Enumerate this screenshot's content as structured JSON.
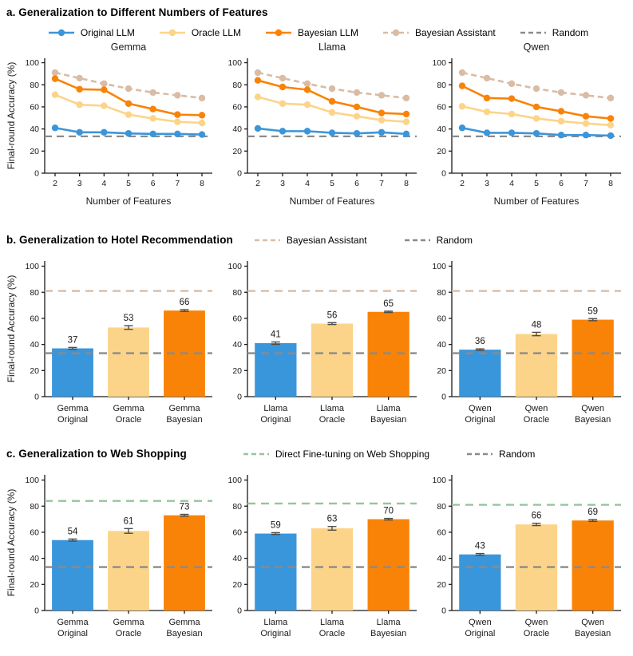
{
  "colors": {
    "blue": "#3A96DB",
    "oracle": "#FCD489",
    "bayesian": "#F98307",
    "assistant": "#D9BCA6",
    "random": "#8A8A8A",
    "green": "#95C59B",
    "error_bar": "#4D4D4D",
    "axis": "#1A1A1A"
  },
  "panel_a": {
    "title": "a. Generalization to Different Numbers of Features",
    "legend": [
      "Original LLM",
      "Oracle LLM",
      "Bayesian LLM",
      "Bayesian Assistant",
      "Random"
    ]
  },
  "panel_b": {
    "title": "b. Generalization to Hotel Recommendation",
    "legend": [
      "Bayesian Assistant",
      "Random"
    ]
  },
  "panel_c": {
    "title": "c. Generalization to Web Shopping",
    "legend": [
      "Direct Fine-tuning on Web Shopping",
      "Random"
    ]
  },
  "chart_data": [
    {
      "type": "line",
      "panel": "a",
      "title": "Gemma",
      "xlabel": "Number of Features",
      "ylabel": "Final-round Accuracy (%)",
      "ylim": [
        0,
        100
      ],
      "x": [
        2,
        3,
        4,
        5,
        6,
        7,
        8
      ],
      "series": [
        {
          "name": "Bayesian Assistant",
          "color": "assistant",
          "dashed": true,
          "values": [
            91,
            86,
            81,
            76.5,
            73,
            70.5,
            68
          ]
        },
        {
          "name": "Oracle LLM",
          "color": "oracle",
          "dashed": false,
          "values": [
            71,
            62,
            61,
            53,
            49.5,
            46.5,
            45.5
          ]
        },
        {
          "name": "Bayesian LLM",
          "color": "bayesian",
          "dashed": false,
          "values": [
            85.5,
            76,
            75.5,
            63,
            58,
            53,
            52.5
          ]
        },
        {
          "name": "Original LLM",
          "color": "blue",
          "dashed": false,
          "values": [
            41,
            37,
            37,
            36,
            35.5,
            35.5,
            35
          ]
        }
      ],
      "ref_lines": [
        {
          "name": "Random",
          "color": "random",
          "value": 33.3
        }
      ]
    },
    {
      "type": "line",
      "panel": "a",
      "title": "Llama",
      "xlabel": "Number of Features",
      "ylabel": "",
      "ylim": [
        0,
        100
      ],
      "x": [
        2,
        3,
        4,
        5,
        6,
        7,
        8
      ],
      "series": [
        {
          "name": "Bayesian Assistant",
          "color": "assistant",
          "dashed": true,
          "values": [
            91,
            86,
            81,
            76.5,
            73,
            70.5,
            68
          ]
        },
        {
          "name": "Oracle LLM",
          "color": "oracle",
          "dashed": false,
          "values": [
            69,
            63,
            62,
            55,
            51.5,
            48,
            46.5
          ]
        },
        {
          "name": "Bayesian LLM",
          "color": "bayesian",
          "dashed": false,
          "values": [
            84,
            78,
            75.5,
            65,
            60,
            54.5,
            53.5
          ]
        },
        {
          "name": "Original LLM",
          "color": "blue",
          "dashed": false,
          "values": [
            40.5,
            38,
            38,
            36.5,
            36,
            37,
            35.5
          ]
        }
      ],
      "ref_lines": [
        {
          "name": "Random",
          "color": "random",
          "value": 33.3
        }
      ]
    },
    {
      "type": "line",
      "panel": "a",
      "title": "Qwen",
      "xlabel": "Number of Features",
      "ylabel": "",
      "ylim": [
        0,
        100
      ],
      "x": [
        2,
        3,
        4,
        5,
        6,
        7,
        8
      ],
      "series": [
        {
          "name": "Bayesian Assistant",
          "color": "assistant",
          "dashed": true,
          "values": [
            91,
            86,
            81,
            76.5,
            73,
            70.5,
            68
          ]
        },
        {
          "name": "Oracle LLM",
          "color": "oracle",
          "dashed": false,
          "values": [
            60.5,
            55.5,
            53.5,
            49.5,
            47,
            45,
            43.5
          ]
        },
        {
          "name": "Bayesian LLM",
          "color": "bayesian",
          "dashed": false,
          "values": [
            79,
            68,
            67.5,
            60,
            56,
            51.5,
            49.5
          ]
        },
        {
          "name": "Original LLM",
          "color": "blue",
          "dashed": false,
          "values": [
            41,
            36.5,
            36.5,
            36,
            34.5,
            34.5,
            34
          ]
        }
      ],
      "ref_lines": [
        {
          "name": "Random",
          "color": "random",
          "value": 33.3
        }
      ]
    },
    {
      "type": "bar",
      "panel": "b",
      "title": "",
      "ylabel": "Final-round Accuracy (%)",
      "ylim": [
        0,
        100
      ],
      "categories": [
        [
          "Gemma",
          "Original"
        ],
        [
          "Gemma",
          "Oracle"
        ],
        [
          "Gemma",
          "Bayesian"
        ]
      ],
      "values": [
        37,
        53,
        66
      ],
      "errors": [
        0.7,
        1.4,
        0.7
      ],
      "bar_colors": [
        "blue",
        "oracle",
        "bayesian"
      ],
      "ref_lines": [
        {
          "name": "Bayesian Assistant",
          "color": "assistant",
          "value": 81
        },
        {
          "name": "Random",
          "color": "random",
          "value": 33.3
        }
      ]
    },
    {
      "type": "bar",
      "panel": "b",
      "title": "",
      "ylabel": "",
      "ylim": [
        0,
        100
      ],
      "categories": [
        [
          "Llama",
          "Original"
        ],
        [
          "Llama",
          "Oracle"
        ],
        [
          "Llama",
          "Bayesian"
        ]
      ],
      "values": [
        41,
        56,
        65
      ],
      "errors": [
        0.9,
        0.7,
        0.5
      ],
      "bar_colors": [
        "blue",
        "oracle",
        "bayesian"
      ],
      "ref_lines": [
        {
          "name": "Bayesian Assistant",
          "color": "assistant",
          "value": 81
        },
        {
          "name": "Random",
          "color": "random",
          "value": 33.3
        }
      ]
    },
    {
      "type": "bar",
      "panel": "b",
      "title": "",
      "ylabel": "",
      "ylim": [
        0,
        100
      ],
      "categories": [
        [
          "Qwen",
          "Original"
        ],
        [
          "Qwen",
          "Oracle"
        ],
        [
          "Qwen",
          "Bayesian"
        ]
      ],
      "values": [
        36,
        48,
        59
      ],
      "errors": [
        0.6,
        1.3,
        0.8
      ],
      "bar_colors": [
        "blue",
        "oracle",
        "bayesian"
      ],
      "ref_lines": [
        {
          "name": "Bayesian Assistant",
          "color": "assistant",
          "value": 81
        },
        {
          "name": "Random",
          "color": "random",
          "value": 33.3
        }
      ]
    },
    {
      "type": "bar",
      "panel": "c",
      "title": "",
      "ylabel": "Final-round Accuracy (%)",
      "ylim": [
        0,
        100
      ],
      "categories": [
        [
          "Gemma",
          "Original"
        ],
        [
          "Gemma",
          "Oracle"
        ],
        [
          "Gemma",
          "Bayesian"
        ]
      ],
      "values": [
        54,
        61,
        73
      ],
      "errors": [
        0.8,
        1.8,
        0.7
      ],
      "bar_colors": [
        "blue",
        "oracle",
        "bayesian"
      ],
      "ref_lines": [
        {
          "name": "Direct Fine-tuning on Web Shopping",
          "color": "green",
          "value": 84
        },
        {
          "name": "Random",
          "color": "random",
          "value": 33.3
        }
      ]
    },
    {
      "type": "bar",
      "panel": "c",
      "title": "",
      "ylabel": "",
      "ylim": [
        0,
        100
      ],
      "categories": [
        [
          "Llama",
          "Original"
        ],
        [
          "Llama",
          "Oracle"
        ],
        [
          "Llama",
          "Bayesian"
        ]
      ],
      "values": [
        59,
        63,
        70
      ],
      "errors": [
        0.7,
        1.4,
        0.6
      ],
      "bar_colors": [
        "blue",
        "oracle",
        "bayesian"
      ],
      "ref_lines": [
        {
          "name": "Direct Fine-tuning on Web Shopping",
          "color": "green",
          "value": 82
        },
        {
          "name": "Random",
          "color": "random",
          "value": 33.3
        }
      ]
    },
    {
      "type": "bar",
      "panel": "c",
      "title": "",
      "ylabel": "",
      "ylim": [
        0,
        100
      ],
      "categories": [
        [
          "Qwen",
          "Original"
        ],
        [
          "Qwen",
          "Oracle"
        ],
        [
          "Qwen",
          "Bayesian"
        ]
      ],
      "values": [
        43,
        66,
        69
      ],
      "errors": [
        0.7,
        0.9,
        0.7
      ],
      "bar_colors": [
        "blue",
        "oracle",
        "bayesian"
      ],
      "ref_lines": [
        {
          "name": "Direct Fine-tuning on Web Shopping",
          "color": "green",
          "value": 81
        },
        {
          "name": "Random",
          "color": "random",
          "value": 33.3
        }
      ]
    }
  ]
}
